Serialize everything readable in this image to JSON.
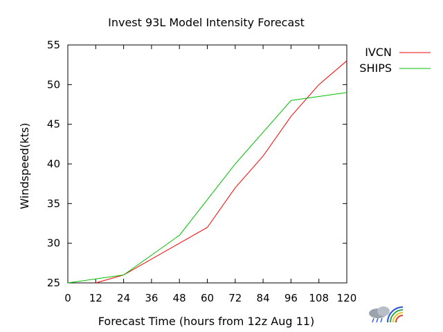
{
  "chart_data": {
    "type": "line",
    "title": "Invest 93L Model Intensity Forecast",
    "xlabel": "Forecast Time (hours from 12z Aug 11)",
    "ylabel": "Windspeed(kts)",
    "xlim": [
      0,
      120
    ],
    "ylim": [
      25,
      55
    ],
    "x_ticks": [
      "0",
      "12",
      "24",
      "36",
      "48",
      "60",
      "72",
      "84",
      "96",
      "108",
      "120"
    ],
    "y_ticks": [
      "25",
      "30",
      "35",
      "40",
      "45",
      "50",
      "55"
    ],
    "grid": false,
    "legend_position": "right-top-outside",
    "series": [
      {
        "name": "IVCN",
        "color": "#ff0000",
        "x": [
          12,
          24,
          48,
          60,
          72,
          84,
          96,
          108,
          120
        ],
        "y": [
          25,
          26,
          30,
          32,
          37,
          41,
          46,
          50,
          53
        ]
      },
      {
        "name": "SHIPS",
        "color": "#00c000",
        "x": [
          0,
          12,
          24,
          48,
          72,
          96,
          120
        ],
        "y": [
          25,
          25.5,
          26,
          31,
          40,
          48,
          49
        ]
      }
    ]
  },
  "logo": {
    "name": "weather-logo-icon"
  }
}
